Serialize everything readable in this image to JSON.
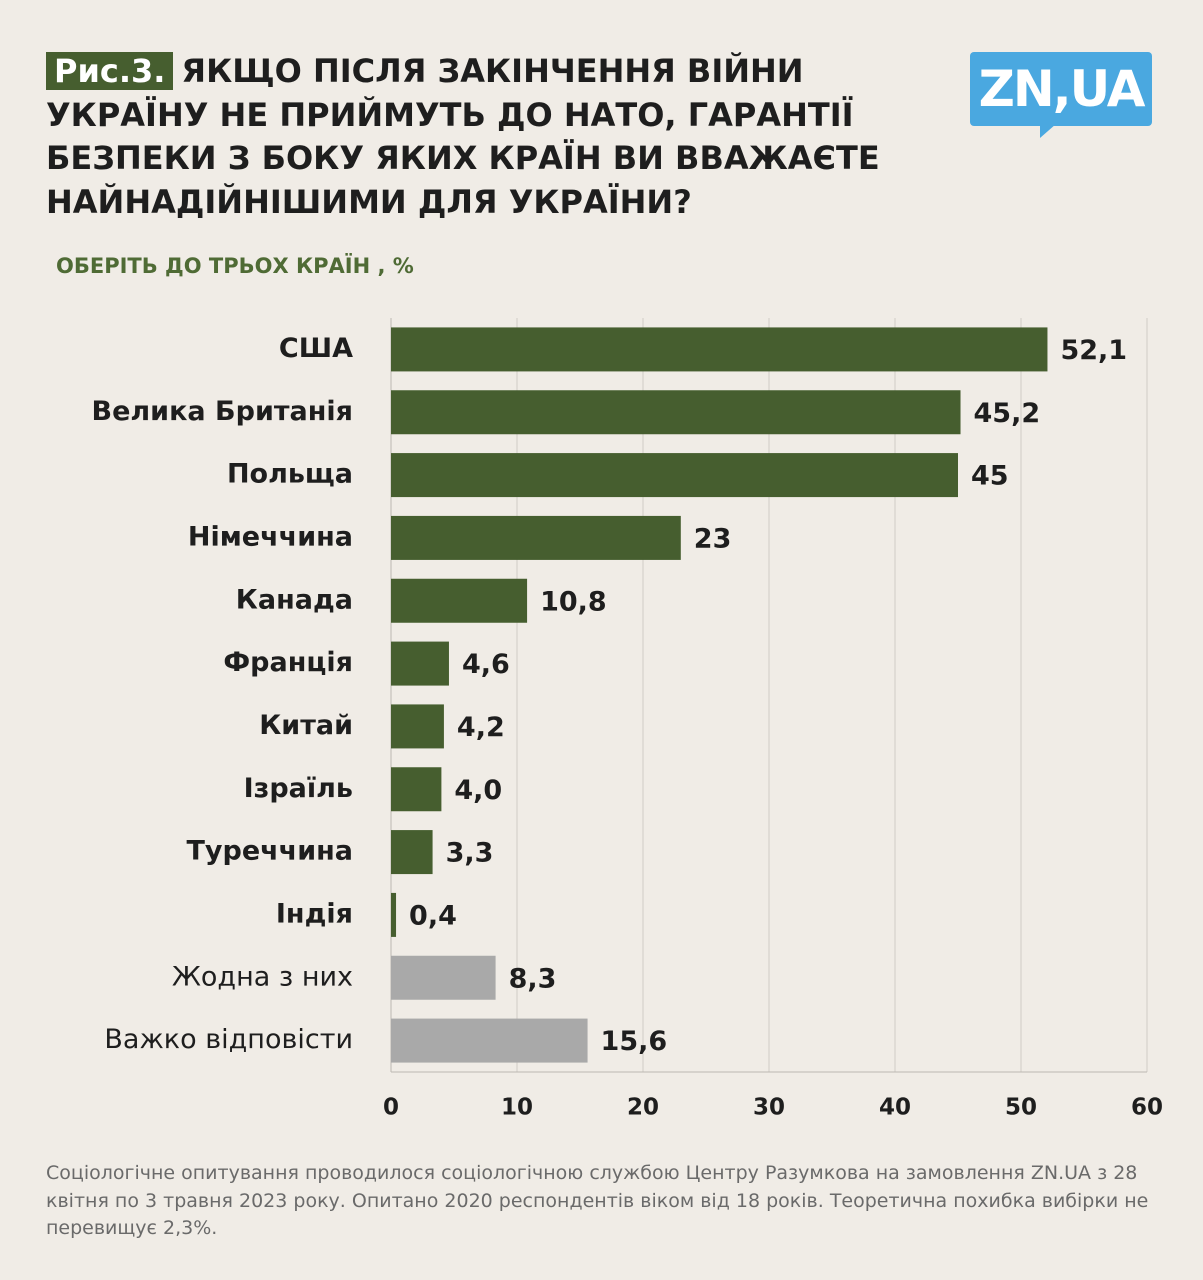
{
  "figure_label": "Рис.3.",
  "logo": "ZN,UA",
  "footnote": "Соціологічне опитування проводилося соціологічною службою Центру Разумкова на замовлення ZN.UA з 28 квітня по 3 травня 2023 року. Опитано 2020 респондентів віком від 18 років. Теоретична похибка вибірки не перевищує 2,3%.",
  "chart_data": {
    "type": "barh",
    "title": "ЯКЩО ПІСЛЯ ЗАКІНЧЕННЯ ВІЙНИ УКРАЇНУ НЕ ПРИЙМУТЬ ДО НАТО, ГАРАНТІЇ БЕЗПЕКИ З БОКУ ЯКИХ КРАЇН ВИ ВВАЖАЄТЕ НАЙНАДІЙНІШИМИ ДЛЯ УКРАЇНИ?",
    "subtitle": "ОБЕРІТЬ ДО ТРЬОХ КРАЇН , %",
    "categories": [
      "США",
      "Велика Британія",
      "Польща",
      "Німеччина",
      "Канада",
      "Франція",
      "Китай",
      "Ізраїль",
      "Туреччина",
      "Індія",
      "Жодна з них",
      "Важко відповісти"
    ],
    "values": [
      52.1,
      45.2,
      45,
      23,
      10.8,
      4.6,
      4.2,
      4.0,
      3.3,
      0.4,
      8.3,
      15.6
    ],
    "value_labels": [
      "52,1",
      "45,2",
      "45",
      "23",
      "10,8",
      "4,6",
      "4,2",
      "4,0",
      "3,3",
      "0,4",
      "8,3",
      "15,6"
    ],
    "colors": [
      "#465e2f",
      "#465e2f",
      "#465e2f",
      "#465e2f",
      "#465e2f",
      "#465e2f",
      "#465e2f",
      "#465e2f",
      "#465e2f",
      "#465e2f",
      "#a9a9a9",
      "#a9a9a9"
    ],
    "xlim": [
      0,
      60
    ],
    "xticks": [
      0,
      10,
      20,
      30,
      40,
      50,
      60
    ],
    "grid": true
  }
}
